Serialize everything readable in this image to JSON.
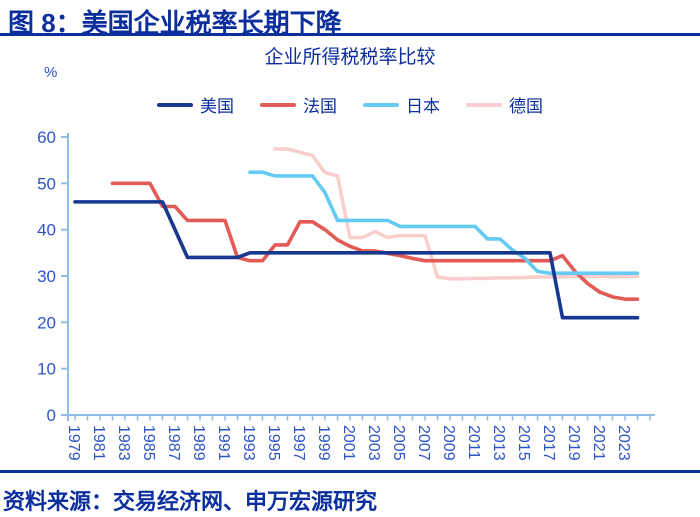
{
  "header": {
    "title": "图 8：美国企业税率长期下降"
  },
  "source": {
    "text": "资料来源：交易经济网、申万宏源研究"
  },
  "colors": {
    "title_navy": "#0c2f9e",
    "tick_label_blue": "#2e55c5",
    "axis_blue": "#90bce8",
    "background": "#ffffff"
  },
  "chart_data": {
    "type": "line",
    "title": "企业所得税税率比较",
    "ylabel": "%",
    "ylim": [
      0,
      60
    ],
    "yticks": [
      0,
      10,
      20,
      30,
      40,
      50,
      60
    ],
    "x_range": [
      1979,
      2024
    ],
    "xtick_labels": [
      1979,
      1981,
      1983,
      1985,
      1987,
      1989,
      1991,
      1993,
      1995,
      1997,
      1999,
      2001,
      2003,
      2005,
      2007,
      2009,
      2011,
      2013,
      2015,
      2017,
      2019,
      2021,
      2023
    ],
    "grid": false,
    "legend_position": "top",
    "series": [
      {
        "name": "美国",
        "color": "#183890",
        "start_year": 1979,
        "values": [
          46,
          46,
          46,
          46,
          46,
          46,
          46,
          46,
          40,
          34,
          34,
          34,
          34,
          34,
          35,
          35,
          35,
          35,
          35,
          35,
          35,
          35,
          35,
          35,
          35,
          35,
          35,
          35,
          35,
          35,
          35,
          35,
          35,
          35,
          35,
          35,
          35,
          35,
          35,
          21,
          21,
          21,
          21,
          21,
          21,
          21
        ]
      },
      {
        "name": "法国",
        "color": "#e25b57",
        "start_year": 1982,
        "values": [
          50,
          50,
          50,
          50,
          45,
          45,
          42,
          42,
          42,
          42,
          34,
          33.3,
          33.3,
          36.7,
          36.7,
          41.7,
          41.7,
          40,
          37.8,
          36.4,
          35.4,
          35.4,
          34.9,
          34.4,
          33.8,
          33.3,
          33.3,
          33.3,
          33.3,
          33.3,
          33.3,
          33.3,
          33.3,
          33.3,
          33.3,
          33.3,
          34.4,
          31,
          28.4,
          26.5,
          25.5,
          25,
          25
        ]
      },
      {
        "name": "日本",
        "color": "#66cbf3",
        "start_year": 1993,
        "values": [
          52.4,
          52.4,
          51.6,
          51.6,
          51.6,
          51.6,
          48,
          42,
          42,
          42,
          42,
          42,
          40.7,
          40.7,
          40.7,
          40.7,
          40.7,
          40.7,
          40.7,
          38,
          38,
          35.6,
          33.8,
          31,
          30.6,
          30.6,
          30.6,
          30.6,
          30.6,
          30.6,
          30.6,
          30.6
        ]
      },
      {
        "name": "德国",
        "color": "#f8cfcd",
        "start_year": 1995,
        "values": [
          57.4,
          57.4,
          56.7,
          56,
          52.3,
          51.6,
          38.3,
          38.3,
          39.6,
          38.3,
          38.7,
          38.7,
          38.7,
          29.8,
          29.4,
          29.4,
          29.5,
          29.5,
          29.6,
          29.6,
          29.7,
          29.8,
          29.8,
          29.8,
          29.9,
          29.9,
          29.9,
          29.8,
          29.9,
          29.9
        ]
      }
    ]
  }
}
